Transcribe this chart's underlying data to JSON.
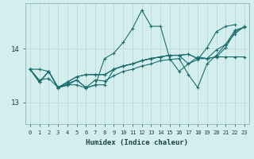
{
  "xlabel": "Humidex (Indice chaleur)",
  "bg_color": "#d4eeee",
  "line_color": "#1a6e6e",
  "grid_color": "#b8dcdc",
  "xlim": [
    -0.5,
    23.5
  ],
  "ylim": [
    12.6,
    14.85
  ],
  "yticks": [
    13,
    14
  ],
  "xticks": [
    0,
    1,
    2,
    3,
    4,
    5,
    6,
    7,
    8,
    9,
    10,
    11,
    12,
    13,
    14,
    15,
    16,
    17,
    18,
    19,
    20,
    21,
    22,
    23
  ],
  "series": [
    [
      13.62,
      13.42,
      13.45,
      13.28,
      13.32,
      13.42,
      13.28,
      13.32,
      13.82,
      13.92,
      14.12,
      14.38,
      14.72,
      14.42,
      14.42,
      13.82,
      13.58,
      13.72,
      13.8,
      14.02,
      14.32,
      14.42,
      14.45,
      null
    ],
    [
      13.62,
      13.62,
      13.58,
      13.28,
      13.35,
      13.42,
      13.28,
      13.42,
      13.4,
      13.5,
      13.58,
      13.62,
      13.68,
      13.72,
      13.78,
      13.8,
      13.82,
      13.52,
      13.28,
      13.72,
      13.88,
      14.08,
      14.35,
      14.4
    ],
    [
      13.62,
      13.38,
      13.58,
      13.28,
      13.38,
      13.48,
      13.52,
      13.52,
      13.52,
      13.62,
      13.68,
      13.72,
      13.78,
      13.82,
      13.85,
      13.88,
      13.88,
      13.9,
      13.82,
      13.82,
      13.85,
      13.85,
      13.85,
      13.85
    ],
    [
      13.62,
      13.38,
      13.58,
      13.28,
      13.38,
      13.48,
      13.52,
      13.52,
      13.52,
      13.62,
      13.68,
      13.72,
      13.78,
      13.82,
      13.85,
      13.88,
      13.88,
      13.9,
      13.82,
      13.82,
      13.98,
      14.08,
      14.28,
      14.42
    ],
    [
      13.62,
      13.38,
      13.58,
      13.27,
      13.33,
      13.33,
      13.27,
      13.33,
      13.33,
      13.62,
      13.68,
      13.72,
      13.78,
      13.82,
      13.85,
      13.88,
      13.88,
      13.72,
      13.85,
      13.82,
      13.85,
      14.02,
      14.32,
      14.4
    ]
  ]
}
